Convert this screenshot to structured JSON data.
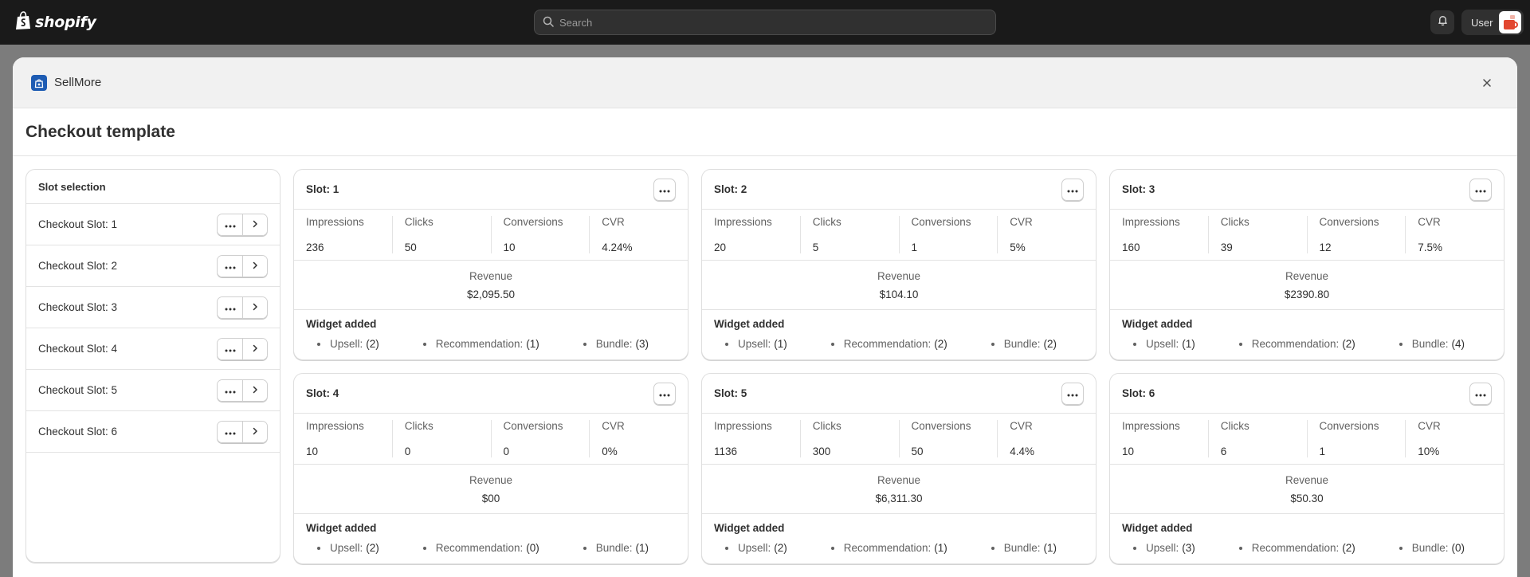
{
  "topbar": {
    "brand": "shopify",
    "search_placeholder": "Search",
    "user_label": "User"
  },
  "modal": {
    "app_name": "SellMore",
    "page_title": "Checkout template"
  },
  "sidebar": {
    "heading": "Slot selection",
    "items": [
      {
        "label": "Checkout Slot: 1"
      },
      {
        "label": "Checkout Slot: 2"
      },
      {
        "label": "Checkout Slot: 3"
      },
      {
        "label": "Checkout Slot: 4"
      },
      {
        "label": "Checkout Slot: 5"
      },
      {
        "label": "Checkout Slot: 6"
      }
    ]
  },
  "labels": {
    "impressions": "Impressions",
    "clicks": "Clicks",
    "conversions": "Conversions",
    "cvr": "CVR",
    "revenue": "Revenue",
    "widget_added": "Widget added",
    "upsell": "Upsell:",
    "recommendation": "Recommendation:",
    "bundle": "Bundle:"
  },
  "slots": [
    {
      "title": "Slot: 1",
      "impressions": "236",
      "clicks": "50",
      "conversions": "10",
      "cvr": "4.24%",
      "revenue": "$2,095.50",
      "upsell": "(2)",
      "recommendation": "(1)",
      "bundle": "(3)"
    },
    {
      "title": "Slot: 2",
      "impressions": "20",
      "clicks": "5",
      "conversions": "1",
      "cvr": "5%",
      "revenue": "$104.10",
      "upsell": "(1)",
      "recommendation": "(2)",
      "bundle": "(2)"
    },
    {
      "title": "Slot: 3",
      "impressions": "160",
      "clicks": "39",
      "conversions": "12",
      "cvr": "7.5%",
      "revenue": "$2390.80",
      "upsell": "(1)",
      "recommendation": "(2)",
      "bundle": "(4)"
    },
    {
      "title": "Slot: 4",
      "impressions": "10",
      "clicks": "0",
      "conversions": "0",
      "cvr": "0%",
      "revenue": "$00",
      "upsell": "(2)",
      "recommendation": "(0)",
      "bundle": "(1)"
    },
    {
      "title": "Slot: 5",
      "impressions": "1136",
      "clicks": "300",
      "conversions": "50",
      "cvr": "4.4%",
      "revenue": "$6,311.30",
      "upsell": "(2)",
      "recommendation": "(1)",
      "bundle": "(1)"
    },
    {
      "title": "Slot: 6",
      "impressions": "10",
      "clicks": "6",
      "conversions": "1",
      "cvr": "10%",
      "revenue": "$50.30",
      "upsell": "(3)",
      "recommendation": "(2)",
      "bundle": "(0)"
    }
  ]
}
